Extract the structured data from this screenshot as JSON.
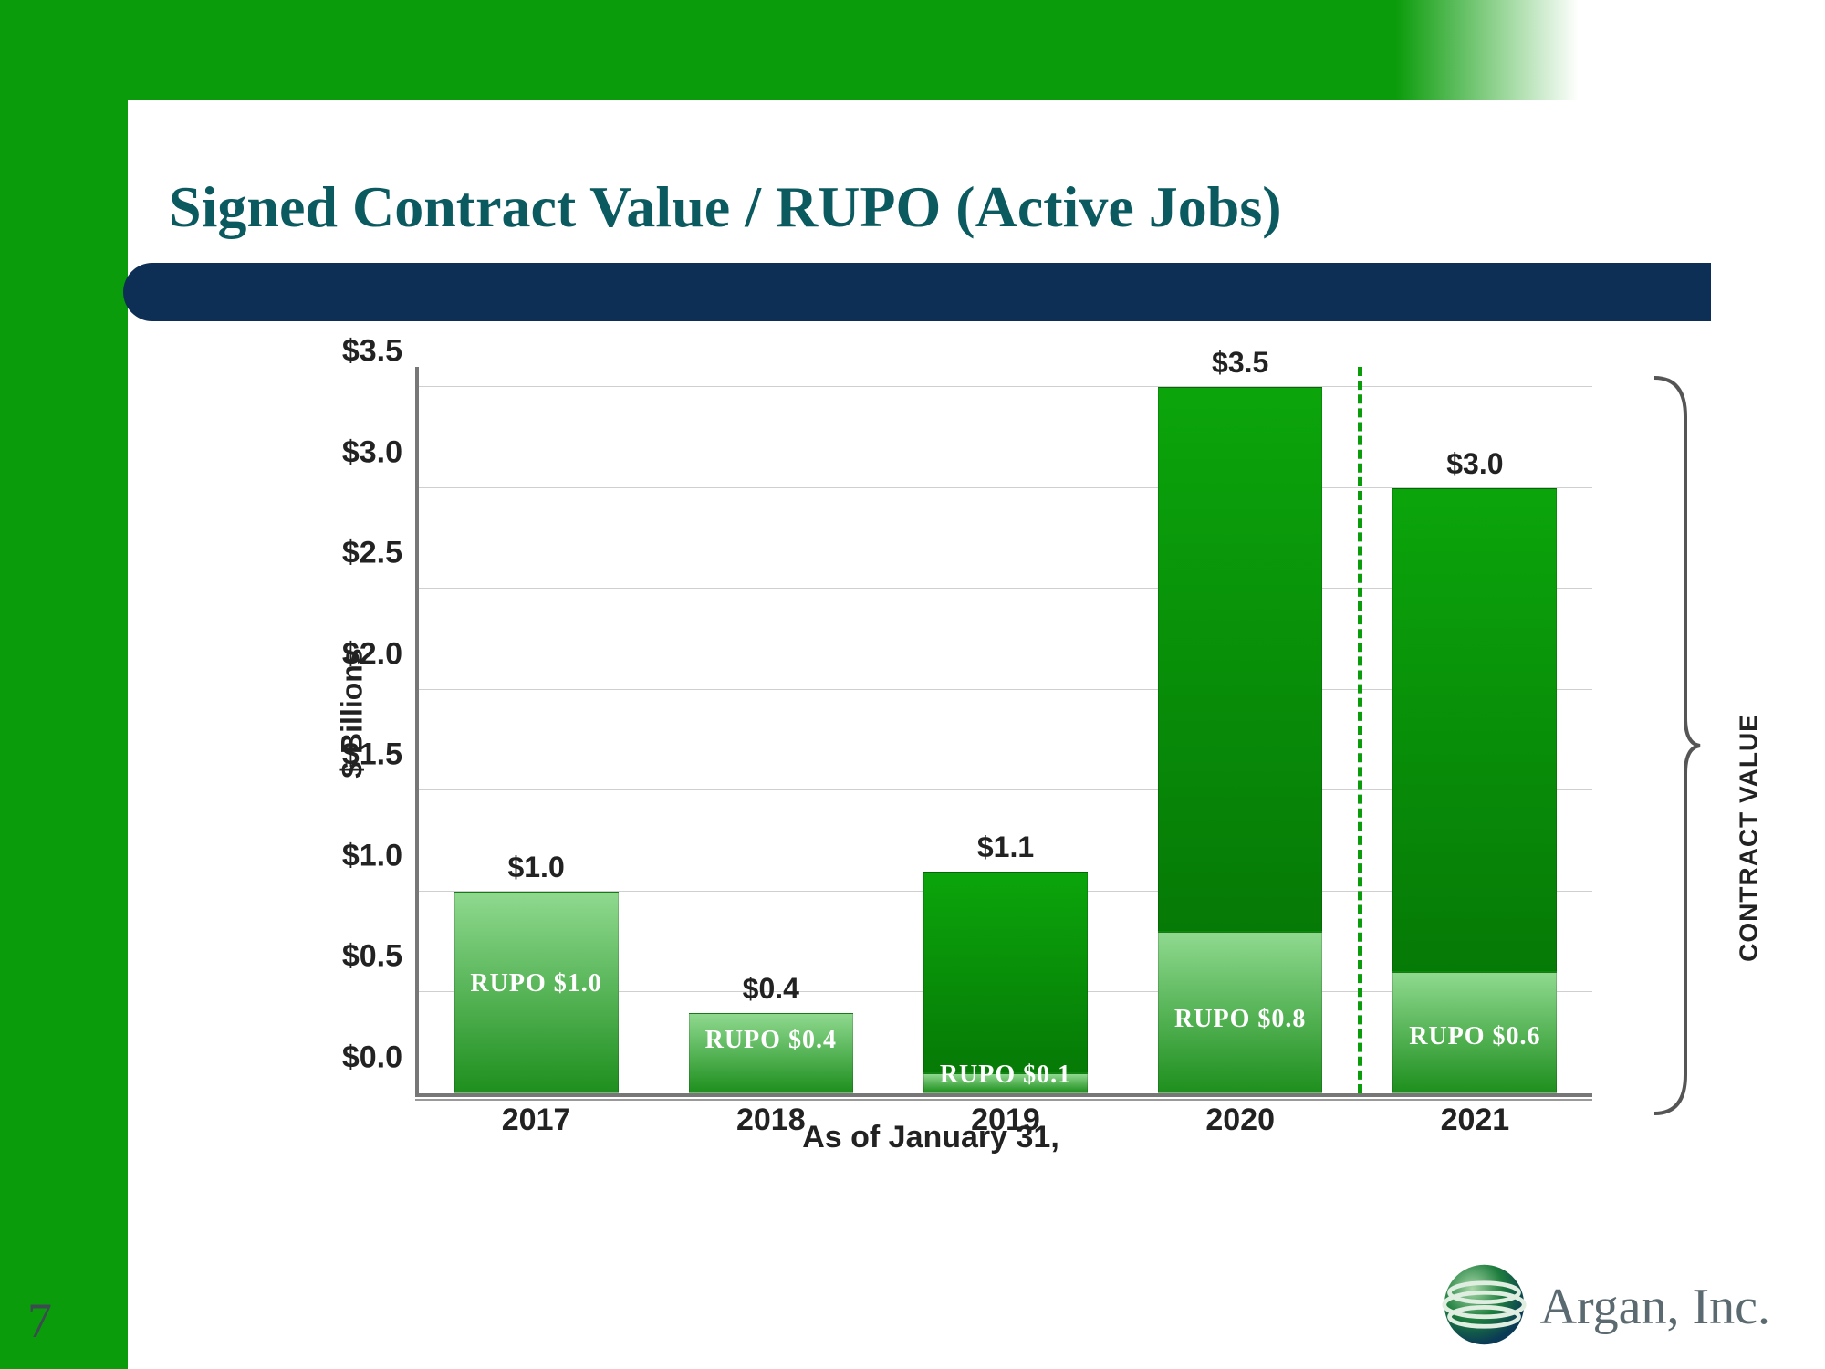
{
  "slide": {
    "title": "Signed Contract Value / RUPO (Active Jobs)",
    "page_number": "7",
    "brand": "Argan, Inc."
  },
  "colors": {
    "brand_green": "#0b9c0b",
    "navy": "#0e2f55",
    "title_teal": "#0a5a5f",
    "bar_top_fill": "#0ba50b",
    "bar_top_fill_dark": "#067a06",
    "rupo_fill_top": "#8fd98f",
    "rupo_fill_bottom": "#1e8f1e",
    "grid": "#cfcfcf",
    "axis": "#777",
    "text": "#222",
    "dash": "#0b9c0b"
  },
  "chart": {
    "type": "stacked-bar",
    "y_axis_title": "$ Billions",
    "x_axis_title": "As of January 31,",
    "right_label": "CONTRACT VALUE",
    "ylim": [
      0.0,
      3.6
    ],
    "y_ticks": [
      {
        "v": 0.0,
        "label": "$0.0"
      },
      {
        "v": 0.5,
        "label": "$0.5"
      },
      {
        "v": 1.0,
        "label": "$1.0"
      },
      {
        "v": 1.5,
        "label": "$1.5"
      },
      {
        "v": 2.0,
        "label": "$2.0"
      },
      {
        "v": 2.5,
        "label": "$2.5"
      },
      {
        "v": 3.0,
        "label": "$3.0"
      },
      {
        "v": 3.5,
        "label": "$3.5"
      }
    ],
    "bar_width_pct": 14,
    "categories": [
      {
        "year": "2017",
        "total": 1.0,
        "rupo": 1.0,
        "total_label": "$1.0",
        "rupo_label": "RUPO $1.0"
      },
      {
        "year": "2018",
        "total": 0.4,
        "rupo": 0.4,
        "total_label": "$0.4",
        "rupo_label": "RUPO $0.4"
      },
      {
        "year": "2019",
        "total": 1.1,
        "rupo": 0.1,
        "total_label": "$1.1",
        "rupo_label": "RUPO $0.1"
      },
      {
        "year": "2020",
        "total": 3.5,
        "rupo": 0.8,
        "total_label": "$3.5",
        "rupo_label": "RUPO $0.8"
      },
      {
        "year": "2021",
        "total": 3.0,
        "rupo": 0.6,
        "total_label": "$3.0",
        "rupo_label": "RUPO $0.6"
      }
    ],
    "separator_after_index": 3
  },
  "fonts": {
    "title_pt": 64,
    "axis_label_pt": 34,
    "bar_label_pt": 32,
    "rupo_label_pt": 28,
    "right_label_pt": 28
  }
}
